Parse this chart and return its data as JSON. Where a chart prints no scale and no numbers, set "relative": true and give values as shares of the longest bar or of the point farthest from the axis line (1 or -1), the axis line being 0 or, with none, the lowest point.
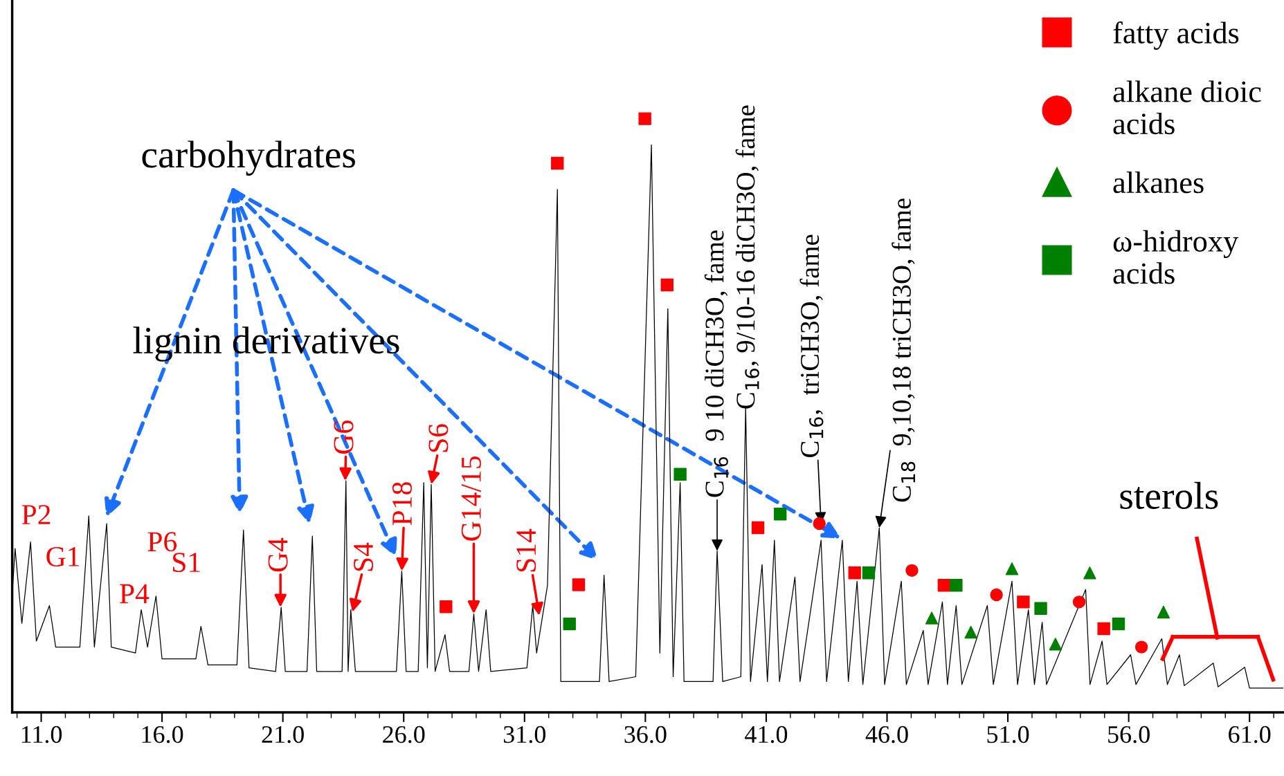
{
  "chart_data": {
    "type": "line",
    "relative": true,
    "xlim": [
      9.8,
      62.4
    ],
    "xticks": [
      {
        "value": 11,
        "label": "11.0"
      },
      {
        "value": 16,
        "label": "16.0"
      },
      {
        "value": 21,
        "label": "21.0"
      },
      {
        "value": 26,
        "label": "26.0"
      },
      {
        "value": 31,
        "label": "31.0"
      },
      {
        "value": 36,
        "label": "36.0"
      },
      {
        "value": 41,
        "label": "41.0"
      },
      {
        "value": 46,
        "label": "46.0"
      },
      {
        "value": 51,
        "label": "51.0"
      },
      {
        "value": 56,
        "label": "56.0"
      },
      {
        "value": 61,
        "label": "61.0"
      }
    ],
    "legend": "top right",
    "grid": false,
    "tick_labels": "x",
    "series": [
      {
        "color": "#000000",
        "marker": "none",
        "line_style": "solid",
        "x": [
          9.8,
          9.92,
          10.2,
          10.56,
          10.8,
          11.34,
          11.6,
          12.6,
          12.97,
          13.2,
          13.71,
          13.9,
          14.9,
          15.14,
          15.4,
          15.75,
          16.0,
          17.4,
          17.61,
          17.9,
          19.1,
          19.37,
          19.6,
          20.7,
          20.93,
          21.1,
          22.0,
          22.22,
          22.4,
          23.45,
          23.61,
          23.7,
          23.81,
          24.0,
          25.7,
          25.92,
          26.1,
          26.6,
          26.83,
          26.98,
          27.14,
          27.3,
          27.71,
          27.9,
          28.7,
          28.9,
          29.1,
          29.41,
          29.6,
          31.1,
          31.34,
          31.5,
          31.95,
          32.36,
          32.5,
          34.1,
          34.29,
          34.5,
          35.6,
          36.25,
          36.6,
          36.93,
          37.15,
          37.44,
          37.6,
          38.8,
          38.97,
          39.2,
          39.95,
          40.15,
          40.35,
          40.83,
          41.05,
          41.34,
          41.55,
          42.19,
          42.4,
          43.27,
          43.5,
          44.15,
          44.4,
          44.76,
          45.0,
          45.68,
          45.9,
          46.59,
          46.8,
          47.5,
          47.7,
          48.29,
          48.5,
          48.86,
          49.1,
          50.15,
          50.4,
          51.17,
          51.4,
          51.85,
          52.1,
          52.42,
          52.6,
          54.22,
          54.4,
          54.9,
          55.1,
          56.08,
          56.3,
          57.37,
          57.6,
          58.1,
          58.3,
          59.5,
          59.7,
          60.8,
          61.0,
          62.4
        ],
        "values": [
          0.2,
          0.276,
          0.15,
          0.287,
          0.12,
          0.18,
          0.11,
          0.11,
          0.331,
          0.11,
          0.318,
          0.11,
          0.1,
          0.173,
          0.11,
          0.196,
          0.09,
          0.09,
          0.145,
          0.08,
          0.08,
          0.307,
          0.075,
          0.069,
          0.177,
          0.069,
          0.069,
          0.297,
          0.069,
          0.069,
          0.39,
          0.069,
          0.173,
          0.069,
          0.069,
          0.238,
          0.069,
          0.069,
          0.387,
          0.075,
          0.384,
          0.069,
          0.131,
          0.069,
          0.069,
          0.166,
          0.069,
          0.173,
          0.069,
          0.075,
          0.18,
          0.1,
          0.214,
          0.881,
          0.052,
          0.052,
          0.231,
          0.052,
          0.06,
          0.956,
          0.1,
          0.68,
          0.06,
          0.387,
          0.052,
          0.052,
          0.272,
          0.052,
          0.06,
          0.515,
          0.052,
          0.249,
          0.052,
          0.29,
          0.052,
          0.228,
          0.052,
          0.29,
          0.052,
          0.29,
          0.052,
          0.221,
          0.047,
          0.311,
          0.047,
          0.221,
          0.047,
          0.138,
          0.047,
          0.186,
          0.047,
          0.18,
          0.047,
          0.18,
          0.047,
          0.221,
          0.047,
          0.173,
          0.047,
          0.152,
          0.047,
          0.207,
          0.047,
          0.12,
          0.047,
          0.097,
          0.047,
          0.124,
          0.047,
          0.097,
          0.045,
          0.083,
          0.043,
          0.076,
          0.041,
          0.041
        ]
      },
      {
        "type": "scatter",
        "name": "fatty acids",
        "color": "#ff0000",
        "marker": "square",
        "x": [
          32.36,
          35.98,
          36.9,
          27.75,
          33.24,
          40.66,
          44.66,
          48.36,
          51.64,
          54.97
        ],
        "values": [
          0.925,
          1.0,
          0.72,
          0.178,
          0.215,
          0.311,
          0.235,
          0.214,
          0.186,
          0.141
        ]
      },
      {
        "type": "scatter",
        "name": "alkane dioic\nacids",
        "color": "#ff0000",
        "marker": "circle",
        "x": [
          43.2,
          47.03,
          50.53,
          53.95,
          56.53
        ],
        "values": [
          0.318,
          0.239,
          0.198,
          0.186,
          0.11
        ]
      },
      {
        "type": "scatter",
        "name": "alkanes",
        "color": "#008000",
        "marker": "triangle",
        "x": [
          51.17,
          54.39,
          47.85,
          49.47,
          52.97,
          57.44
        ],
        "values": [
          0.242,
          0.235,
          0.159,
          0.135,
          0.115,
          0.169
        ]
      },
      {
        "type": "scatter",
        "name": "ω-hidroxy\nacids",
        "color": "#008000",
        "marker": "square",
        "x": [
          37.44,
          41.58,
          32.86,
          45.24,
          48.86,
          52.36,
          55.58
        ],
        "values": [
          0.401,
          0.334,
          0.149,
          0.235,
          0.214,
          0.175,
          0.149
        ]
      }
    ],
    "annotations": [
      "P2",
      "G1",
      "P6",
      "S1",
      "P4",
      {
        "text": "G4",
        "x": 20.9,
        "y": 0.177
      },
      {
        "text": "S4",
        "x": 23.88,
        "y": 0.169
      },
      {
        "text": "G6",
        "x": 23.58,
        "y": 0.39
      },
      {
        "text": "P18",
        "x": 25.92,
        "y": 0.238
      },
      {
        "text": "S6",
        "x": 27.14,
        "y": 0.384
      },
      {
        "text": "G14/15",
        "x": 28.9,
        "y": 0.166
      },
      {
        "text": "S14",
        "x": 31.61,
        "y": 0.163
      },
      {
        "text": "C$_{16}$  9 10 diCH3O, fame",
        "x": 38.97,
        "y": 0.272
      },
      "C$_{16}$, 9/10-16 diCH3O, fame",
      {
        "text": "C$_{16}$,  triCH3O, fame",
        "x": 43.27,
        "y": 0.318
      },
      {
        "text": "C$_{18}$  9,10,18 triCH3O, fame",
        "x": 45.68,
        "y": 0.311
      },
      "carbohydrates",
      "lignin derivatives",
      "sterols"
    ]
  }
}
